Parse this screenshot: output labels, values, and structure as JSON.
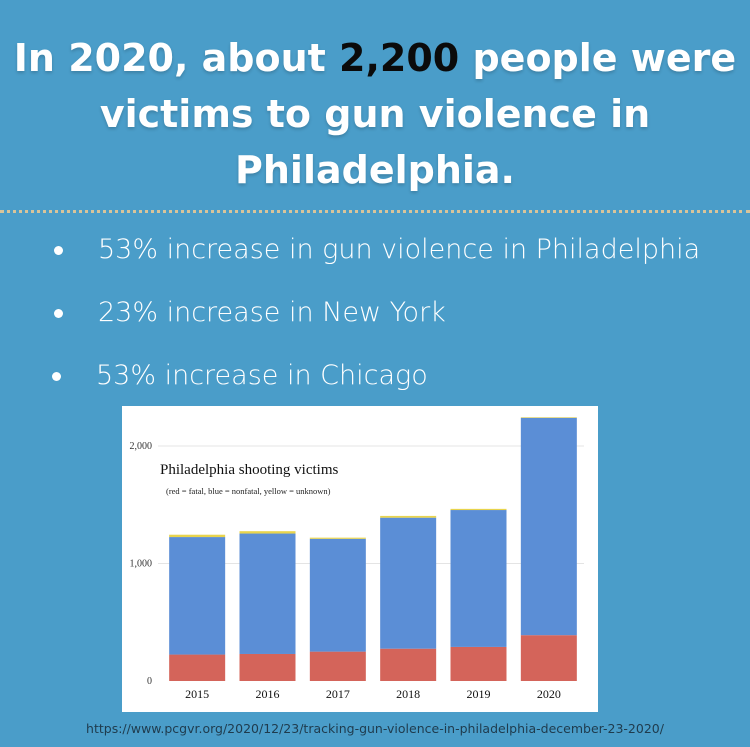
{
  "headline": {
    "part1": "In 2020, about ",
    "highlight": "2,200",
    "part2": " people were victims to gun violence in Philadelphia."
  },
  "bullets": [
    {
      "text": "53% increase in gun violence in Philadelphia"
    },
    {
      "text": "23% increase in New York"
    },
    {
      "text": "53% increase in Chicago"
    }
  ],
  "colors": {
    "background": "#4a9dc9",
    "fatal": "#d4645a",
    "nonfatal": "#5b8ed6",
    "unknown": "#e8d44d"
  },
  "chart_data": {
    "type": "bar",
    "stacked": true,
    "title": "Philadelphia shooting victims",
    "subtitle": "(red = fatal, blue = nonfatal,  yellow = unknown)",
    "categories": [
      "2015",
      "2016",
      "2017",
      "2018",
      "2019",
      "2020"
    ],
    "series": [
      {
        "name": "fatal",
        "color": "#d4645a",
        "values": [
          225,
          230,
          250,
          275,
          290,
          390
        ]
      },
      {
        "name": "nonfatal",
        "color": "#5b8ed6",
        "values": [
          1000,
          1025,
          960,
          1115,
          1165,
          1850
        ]
      },
      {
        "name": "unknown",
        "color": "#e8d44d",
        "values": [
          20,
          20,
          10,
          15,
          10,
          5
        ]
      }
    ],
    "yticks": [
      0,
      1000,
      2000
    ],
    "ytick_labels": [
      "0",
      "1,000",
      "2,000"
    ],
    "ylim": [
      0,
      2250
    ],
    "grid": true
  },
  "source": "https://www.pcgvr.org/2020/12/23/tracking-gun-violence-in-philadelphia-december-23-2020/"
}
